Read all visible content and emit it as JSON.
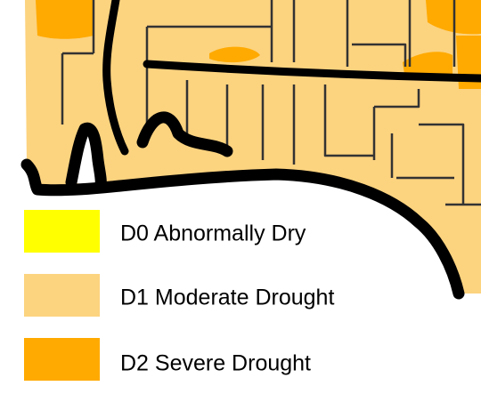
{
  "legend": {
    "items": [
      {
        "label": "D0 Abnormally Dry",
        "color": "#ffff00"
      },
      {
        "label": "D1 Moderate Drought",
        "color": "#fcd37f"
      },
      {
        "label": "D2 Severe Drought",
        "color": "#ffaa00"
      }
    ]
  }
}
